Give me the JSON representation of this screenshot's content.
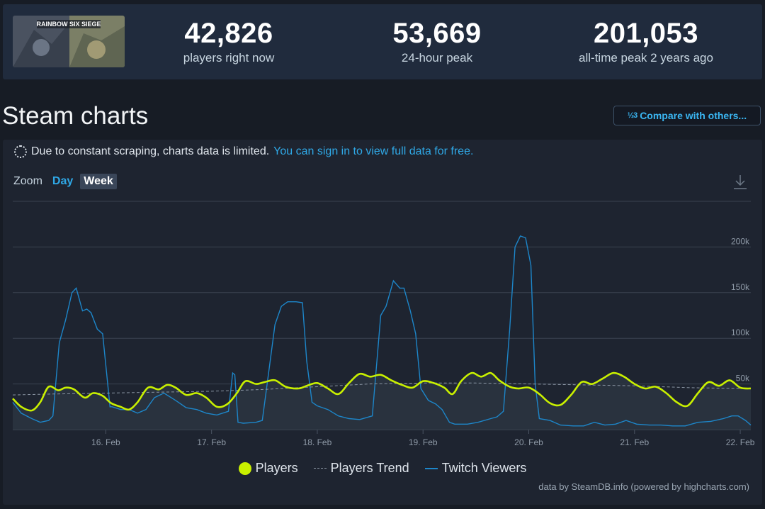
{
  "stats": [
    {
      "value": "42,826",
      "label": "players right now"
    },
    {
      "value": "53,669",
      "label": "24-hour peak"
    },
    {
      "value": "201,053",
      "label": "all-time peak 2 years ago"
    }
  ],
  "game": {
    "logo_text": "RAINBOW SIX SIEGE"
  },
  "page": {
    "title": "Steam charts",
    "compare_label": "Compare with others..."
  },
  "notice": {
    "text": "Due to constant scraping, charts data is limited.",
    "link": "You can sign in to view full data for free."
  },
  "zoom": {
    "label": "Zoom",
    "options": [
      "Day",
      "Week"
    ],
    "selected": "Week"
  },
  "legend": [
    "Players",
    "Players Trend",
    "Twitch Viewers"
  ],
  "credits": "data by SteamDB.info (powered by highcharts.com)",
  "colors": {
    "players": "#c9f000",
    "trend": "#8a95a3",
    "twitch": "#1d86c9"
  },
  "chart_data": {
    "type": "line",
    "ylim": [
      0,
      250000
    ],
    "y_ticks": [
      50000,
      100000,
      150000,
      200000
    ],
    "y_tick_labels": [
      "50k",
      "100k",
      "150k",
      "200k"
    ],
    "x_range": [
      15.12,
      22.1
    ],
    "x_ticks": [
      16,
      17,
      18,
      19,
      20,
      21,
      22
    ],
    "x_tick_labels": [
      "16. Feb",
      "17. Feb",
      "18. Feb",
      "19. Feb",
      "20. Feb",
      "21. Feb",
      "22. Feb"
    ],
    "grid": true,
    "legend_position": "bottom",
    "series": [
      {
        "name": "Players",
        "color": "#c9f000",
        "x": [
          15.12,
          15.2,
          15.3,
          15.38,
          15.46,
          15.55,
          15.62,
          15.7,
          15.8,
          15.88,
          15.97,
          16.05,
          16.14,
          16.22,
          16.3,
          16.4,
          16.5,
          16.58,
          16.66,
          16.76,
          16.86,
          16.95,
          17.05,
          17.15,
          17.24,
          17.32,
          17.42,
          17.5,
          17.6,
          17.7,
          17.82,
          17.9,
          18.0,
          18.1,
          18.2,
          18.3,
          18.4,
          18.5,
          18.6,
          18.7,
          18.8,
          18.9,
          19.0,
          19.1,
          19.2,
          19.28,
          19.36,
          19.46,
          19.55,
          19.64,
          19.72,
          19.82,
          19.9,
          20.0,
          20.1,
          20.2,
          20.3,
          20.4,
          20.5,
          20.6,
          20.7,
          20.8,
          20.9,
          21.0,
          21.1,
          21.2,
          21.3,
          21.4,
          21.5,
          21.6,
          21.7,
          21.8,
          21.9,
          22.0,
          22.1
        ],
        "y": [
          34000,
          25000,
          21000,
          30000,
          47000,
          43000,
          46000,
          44000,
          35000,
          40000,
          37000,
          29000,
          25000,
          22000,
          30000,
          46000,
          44000,
          49000,
          46000,
          38000,
          40000,
          35000,
          25000,
          28000,
          40000,
          53000,
          50000,
          52000,
          54000,
          47000,
          45000,
          48000,
          51000,
          45000,
          39000,
          51000,
          61000,
          58000,
          60000,
          54000,
          49000,
          46000,
          53000,
          51000,
          46000,
          39000,
          53000,
          62000,
          58000,
          62000,
          54000,
          47000,
          45000,
          46000,
          39000,
          29000,
          27000,
          38000,
          52000,
          50000,
          56000,
          62000,
          58000,
          50000,
          45000,
          47000,
          40000,
          30000,
          26000,
          40000,
          52000,
          48000,
          54000,
          46000,
          45000
        ]
      },
      {
        "name": "Players Trend",
        "color": "#8a95a3",
        "x": [
          15.12,
          15.5,
          16.0,
          16.5,
          17.0,
          17.5,
          18.0,
          18.5,
          19.0,
          19.5,
          20.0,
          20.5,
          21.0,
          21.5,
          22.0,
          22.1
        ],
        "y": [
          38000,
          39000,
          40000,
          41000,
          42000,
          44000,
          47000,
          50000,
          51000,
          51000,
          50000,
          49000,
          48000,
          46000,
          45000,
          45000
        ]
      },
      {
        "name": "Twitch Viewers",
        "color": "#1d86c9",
        "x": [
          15.12,
          15.2,
          15.3,
          15.38,
          15.46,
          15.5,
          15.56,
          15.62,
          15.68,
          15.72,
          15.78,
          15.82,
          15.86,
          15.92,
          15.97,
          16.04,
          16.06,
          16.14,
          16.22,
          16.3,
          16.38,
          16.46,
          16.55,
          16.66,
          16.76,
          16.86,
          16.95,
          17.05,
          17.16,
          17.2,
          17.22,
          17.25,
          17.3,
          17.42,
          17.48,
          17.52,
          17.6,
          17.66,
          17.72,
          17.8,
          17.86,
          17.9,
          17.95,
          18.0,
          18.05,
          18.1,
          18.2,
          18.3,
          18.4,
          18.52,
          18.6,
          18.65,
          18.72,
          18.78,
          18.82,
          18.88,
          18.93,
          18.98,
          19.05,
          19.12,
          19.18,
          19.25,
          19.3,
          19.42,
          19.52,
          19.64,
          19.7,
          19.76,
          19.82,
          19.87,
          19.92,
          19.97,
          20.02,
          20.06,
          20.1,
          20.2,
          20.3,
          20.42,
          20.52,
          20.62,
          20.72,
          20.82,
          20.92,
          21.02,
          21.14,
          21.25,
          21.36,
          21.48,
          21.6,
          21.72,
          21.84,
          21.92,
          21.98,
          22.05,
          22.1
        ],
        "y": [
          30000,
          18000,
          12000,
          8000,
          10000,
          15000,
          95000,
          120000,
          150000,
          155000,
          130000,
          132000,
          128000,
          110000,
          105000,
          25000,
          25000,
          22000,
          22000,
          18000,
          22000,
          35000,
          40000,
          32000,
          24000,
          22000,
          18000,
          16000,
          20000,
          62000,
          60000,
          8000,
          7000,
          8000,
          10000,
          45000,
          115000,
          135000,
          140000,
          140000,
          139000,
          75000,
          30000,
          26000,
          24000,
          22000,
          15000,
          12000,
          11000,
          15000,
          125000,
          135000,
          163000,
          155000,
          155000,
          130000,
          105000,
          45000,
          32000,
          28000,
          22000,
          8000,
          6000,
          6000,
          8000,
          12000,
          14000,
          20000,
          110000,
          200000,
          212000,
          210000,
          180000,
          50000,
          12000,
          10000,
          5000,
          4000,
          4000,
          8000,
          5000,
          6000,
          10000,
          6000,
          5000,
          5000,
          4000,
          4000,
          8000,
          9000,
          12000,
          15000,
          15000,
          10000,
          5000
        ]
      }
    ]
  }
}
